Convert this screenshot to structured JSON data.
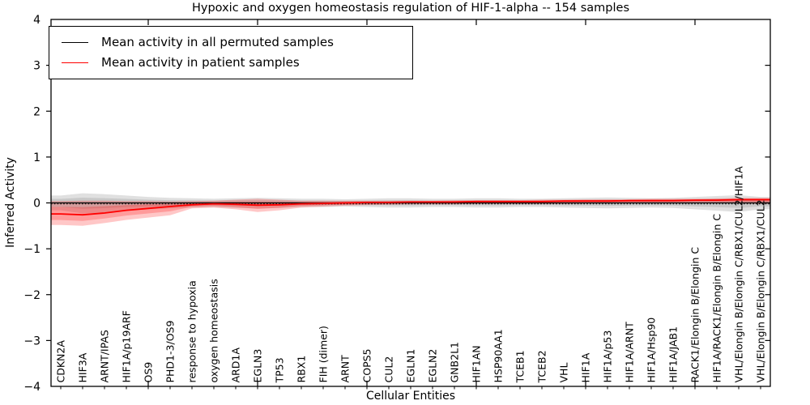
{
  "figure": {
    "title": "Hypoxic and oxygen homeostasis regulation of HIF-1-alpha -- 154 samples",
    "xlabel": "Cellular Entities",
    "ylabel": "Inferred Activity"
  },
  "legend": {
    "items": [
      {
        "label": "Mean activity in all permuted samples",
        "color": "#000000"
      },
      {
        "label": "Mean activity in patient samples",
        "color": "#ff0000"
      }
    ],
    "position": "upper left"
  },
  "chart_data": {
    "type": "line",
    "title": "Hypoxic and oxygen homeostasis regulation of HIF-1-alpha -- 154 samples",
    "xlabel": "Cellular Entities",
    "ylabel": "Inferred Activity",
    "ylim": [
      -4,
      4
    ],
    "ytick_values": [
      4,
      3,
      2,
      1,
      0,
      -1,
      -2,
      -3,
      -4
    ],
    "ytick_labels": [
      "4",
      "3",
      "2",
      "1",
      "0",
      "−1",
      "−2",
      "−3",
      "−4"
    ],
    "grid": false,
    "zero_line": {
      "y": 0,
      "style": "dotted",
      "color": "#000000"
    },
    "categories": [
      "CDKN2A",
      "HIF3A",
      "ARNT/IPAS",
      "HIF1A/p19ARF",
      "OS9",
      "PHD1-3/OS9",
      "response to hypoxia",
      "oxygen homeostasis",
      "ARD1A",
      "EGLN3",
      "TP53",
      "RBX1",
      "FIH (dimer)",
      "ARNT",
      "COPS5",
      "CUL2",
      "EGLN1",
      "EGLN2",
      "GNB2L1",
      "HIF1AN",
      "HSP90AA1",
      "TCEB1",
      "TCEB2",
      "VHL",
      "HIF1A",
      "HIF1A/p53",
      "HIF1A/ARNT",
      "HIF1A/Hsp90",
      "HIF1A/JAB1",
      "RACK1/Elongin B/Elongin C",
      "HIF1A/RACK1/Elongin B/Elongin C",
      "VHL/Elongin B/Elongin C/RBX1/CUL2/HIF1A",
      "VHL/Elongin B/Elongin C/RBX1/CUL2"
    ],
    "series": [
      {
        "name": "Mean activity in all permuted samples",
        "color": "#000000",
        "line_style": "solid",
        "values": [
          0,
          0,
          0,
          0,
          0,
          0,
          0,
          0,
          0,
          0,
          0,
          0,
          0,
          0,
          0,
          0,
          0,
          0,
          0,
          0,
          0,
          0,
          0,
          0,
          0,
          0,
          0,
          0,
          0,
          0,
          0,
          0,
          0
        ],
        "band": {
          "color": "#000000",
          "opacity": 0.12,
          "upper": [
            0.16,
            0.21,
            0.19,
            0.16,
            0.13,
            0.11,
            0.1,
            0.09,
            0.1,
            0.11,
            0.1,
            0.09,
            0.09,
            0.08,
            0.09,
            0.1,
            0.1,
            0.09,
            0.09,
            0.1,
            0.1,
            0.09,
            0.09,
            0.1,
            0.11,
            0.12,
            0.11,
            0.1,
            0.11,
            0.13,
            0.15,
            0.17,
            0.13
          ],
          "lower": [
            -0.16,
            -0.23,
            -0.21,
            -0.17,
            -0.14,
            -0.12,
            -0.1,
            -0.09,
            -0.11,
            -0.12,
            -0.11,
            -0.09,
            -0.09,
            -0.08,
            -0.09,
            -0.1,
            -0.1,
            -0.09,
            -0.09,
            -0.1,
            -0.1,
            -0.09,
            -0.09,
            -0.1,
            -0.11,
            -0.12,
            -0.11,
            -0.1,
            -0.11,
            -0.14,
            -0.17,
            -0.2,
            -0.14
          ]
        }
      },
      {
        "name": "Mean activity in patient samples",
        "color": "#ff0000",
        "line_style": "solid",
        "values": [
          -0.24,
          -0.26,
          -0.22,
          -0.16,
          -0.12,
          -0.08,
          -0.04,
          -0.02,
          -0.03,
          -0.05,
          -0.04,
          -0.02,
          -0.01,
          0.0,
          0.01,
          0.01,
          0.02,
          0.02,
          0.02,
          0.03,
          0.03,
          0.03,
          0.03,
          0.04,
          0.04,
          0.04,
          0.05,
          0.05,
          0.05,
          0.06,
          0.06,
          0.07,
          0.07
        ],
        "band": {
          "color": "#ff0000",
          "opacity": 0.22,
          "upper": [
            0.04,
            0.05,
            0.05,
            0.04,
            0.04,
            0.03,
            0.04,
            0.05,
            0.07,
            0.09,
            0.07,
            0.05,
            0.05,
            0.05,
            0.05,
            0.05,
            0.05,
            0.05,
            0.06,
            0.06,
            0.06,
            0.06,
            0.07,
            0.07,
            0.08,
            0.08,
            0.08,
            0.09,
            0.09,
            0.09,
            0.1,
            0.11,
            0.11
          ],
          "lower": [
            -0.48,
            -0.5,
            -0.44,
            -0.37,
            -0.32,
            -0.27,
            -0.12,
            -0.1,
            -0.14,
            -0.2,
            -0.16,
            -0.1,
            -0.08,
            -0.06,
            -0.05,
            -0.04,
            -0.03,
            -0.03,
            -0.03,
            -0.02,
            -0.02,
            -0.02,
            -0.02,
            -0.02,
            -0.01,
            -0.01,
            -0.01,
            0.0,
            0.0,
            0.0,
            0.0,
            -0.01,
            -0.02
          ]
        }
      }
    ],
    "x_major_tick_indices": [
      4,
      9,
      14,
      19,
      24,
      29
    ],
    "sample_count_in_title": 154
  }
}
